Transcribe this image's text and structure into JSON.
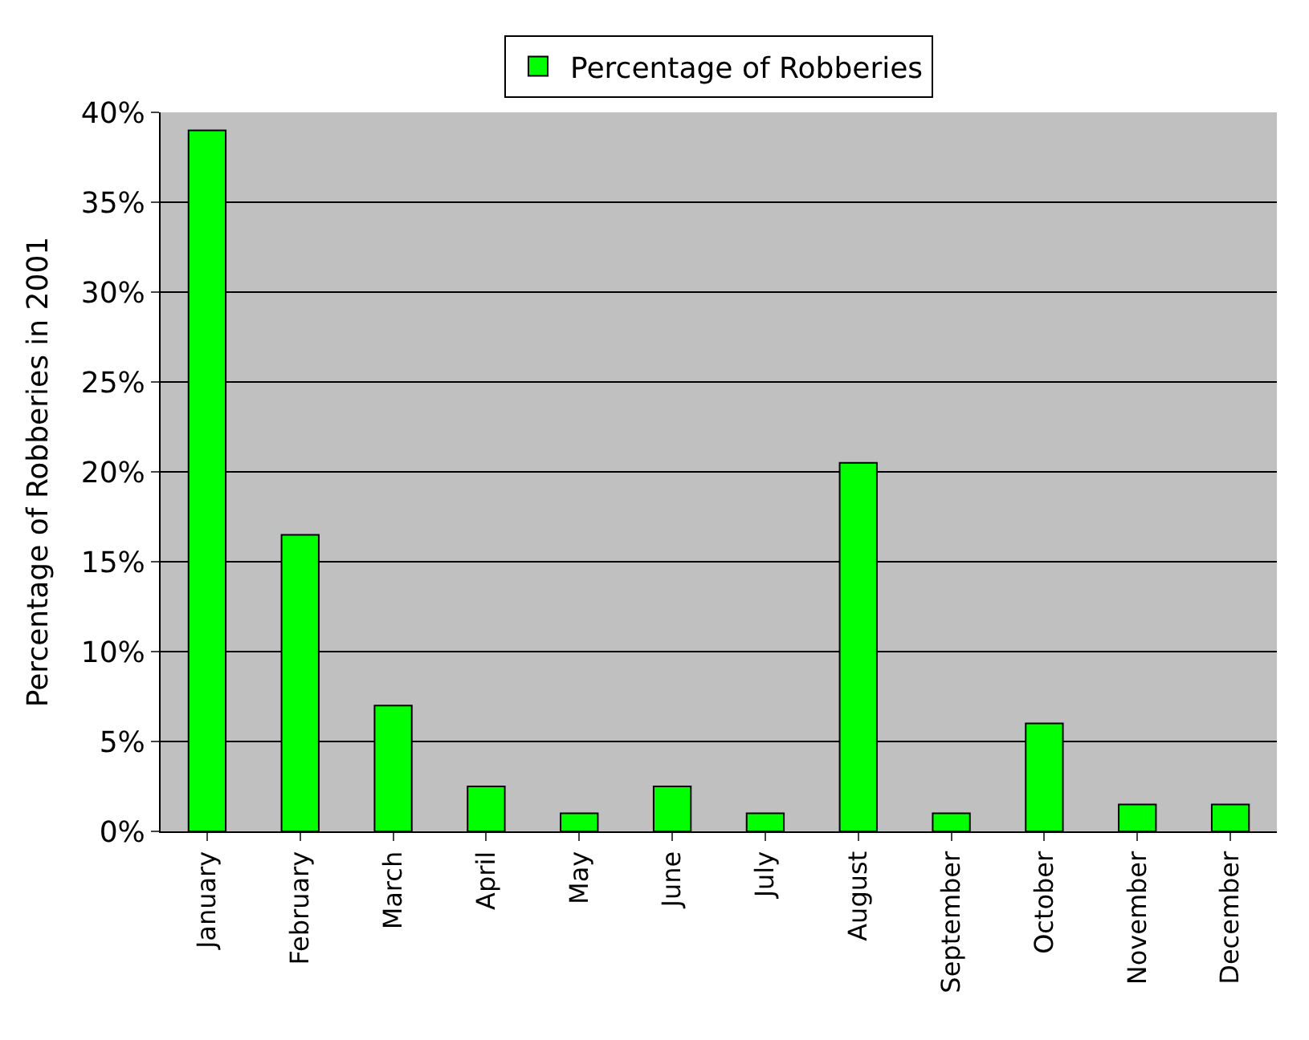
{
  "chart_data": {
    "type": "bar",
    "ylabel": "Percentage of Robberies in 2001",
    "categories": [
      "January",
      "February",
      "March",
      "April",
      "May",
      "June",
      "July",
      "August",
      "September",
      "October",
      "November",
      "December"
    ],
    "series": [
      {
        "name": "Percentage of Robberies",
        "color": "#00ff00",
        "values": [
          39,
          16.5,
          7,
          2.5,
          1,
          2.5,
          1,
          20.5,
          1,
          6,
          1.5,
          1.5
        ]
      }
    ],
    "ylim": [
      0,
      40
    ],
    "yticks": [
      {
        "value": 0,
        "label": "0%"
      },
      {
        "value": 5,
        "label": "5%"
      },
      {
        "value": 10,
        "label": "10%"
      },
      {
        "value": 15,
        "label": "15%"
      },
      {
        "value": 20,
        "label": "20%"
      },
      {
        "value": 25,
        "label": "25%"
      },
      {
        "value": 30,
        "label": "30%"
      },
      {
        "value": 35,
        "label": "35%"
      },
      {
        "value": 40,
        "label": "40%"
      }
    ],
    "grid": "y",
    "legend": "top"
  }
}
